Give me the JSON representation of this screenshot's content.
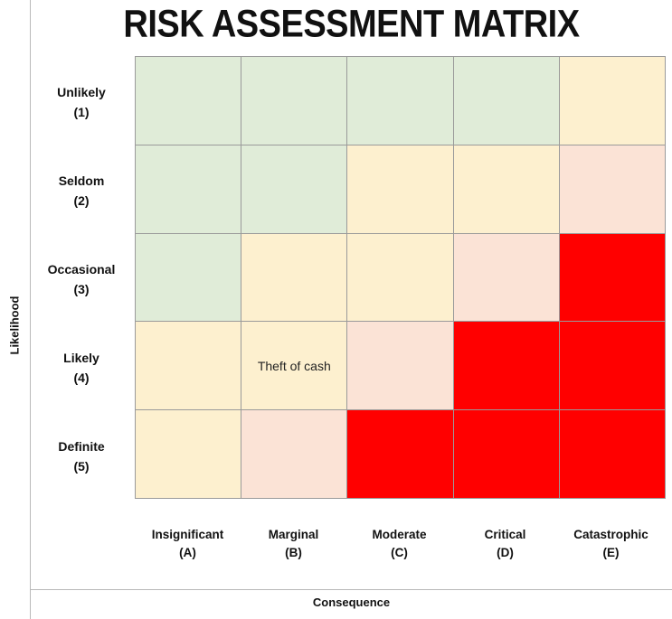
{
  "title": "RISK ASSESSMENT MATRIX",
  "y_axis_title": "Likelihood",
  "x_axis_title": "Consequence",
  "colors": {
    "low": "#e0ecd8",
    "medium": "#fdf0cf",
    "high": "#fbe3d6",
    "extreme": "#ff0000"
  },
  "rows": [
    {
      "name": "Unlikely",
      "code": "(1)"
    },
    {
      "name": "Seldom",
      "code": "(2)"
    },
    {
      "name": "Occasional",
      "code": "(3)"
    },
    {
      "name": "Likely",
      "code": "(4)"
    },
    {
      "name": "Definite",
      "code": "(5)"
    }
  ],
  "columns": [
    {
      "name": "Insignificant",
      "code": "(A)"
    },
    {
      "name": "Marginal",
      "code": "(B)"
    },
    {
      "name": "Moderate",
      "code": "(C)"
    },
    {
      "name": "Critical",
      "code": "(D)"
    },
    {
      "name": "Catastrophic",
      "code": "(E)"
    }
  ],
  "cells": [
    [
      "low",
      "low",
      "low",
      "low",
      "medium"
    ],
    [
      "low",
      "low",
      "medium",
      "medium",
      "high"
    ],
    [
      "low",
      "medium",
      "medium",
      "high",
      "extreme"
    ],
    [
      "medium",
      "medium",
      "high",
      "extreme",
      "extreme"
    ],
    [
      "medium",
      "high",
      "extreme",
      "extreme",
      "extreme"
    ]
  ],
  "cell_text": [
    [
      "",
      "",
      "",
      "",
      ""
    ],
    [
      "",
      "",
      "",
      "",
      ""
    ],
    [
      "",
      "",
      "",
      "",
      ""
    ],
    [
      "",
      "Theft of cash",
      "",
      "",
      ""
    ],
    [
      "",
      "",
      "",
      "",
      ""
    ]
  ]
}
